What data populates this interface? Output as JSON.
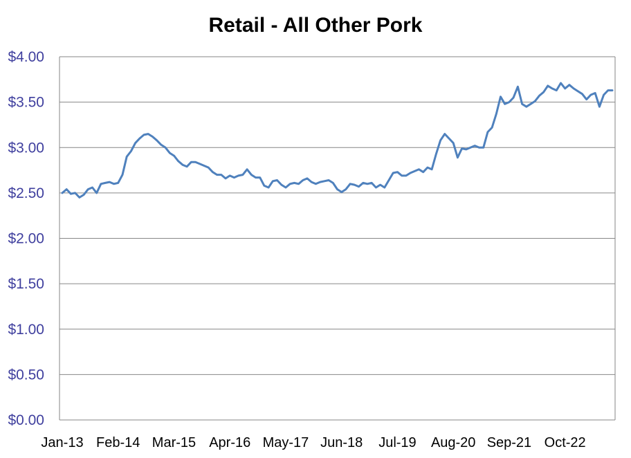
{
  "chart_data": {
    "type": "line",
    "title": "Retail - All Other Pork",
    "xlabel": "",
    "ylabel": "",
    "y_ticks": [
      "$0.00",
      "$0.50",
      "$1.00",
      "$1.50",
      "$2.00",
      "$2.50",
      "$3.00",
      "$3.50",
      "$4.00"
    ],
    "x_ticks": [
      "Jan-13",
      "Feb-14",
      "Mar-15",
      "Apr-16",
      "May-17",
      "Jun-18",
      "Jul-19",
      "Aug-20",
      "Sep-21",
      "Oct-22"
    ],
    "x_tick_start_month": 0,
    "x_tick_interval_months": 13,
    "ylim": [
      0,
      4
    ],
    "grid": true,
    "legend": "none",
    "colors": {
      "line": "#4F81BD",
      "grid": "#868686",
      "axis": "#868686",
      "ytick": "#3F3F9E"
    },
    "series": [
      {
        "values": [
          2.5,
          2.54,
          2.49,
          2.5,
          2.45,
          2.48,
          2.54,
          2.56,
          2.5,
          2.6,
          2.61,
          2.62,
          2.6,
          2.61,
          2.7,
          2.9,
          2.96,
          3.05,
          3.1,
          3.14,
          3.15,
          3.12,
          3.08,
          3.03,
          3.0,
          2.94,
          2.91,
          2.85,
          2.81,
          2.79,
          2.84,
          2.84,
          2.82,
          2.8,
          2.78,
          2.73,
          2.7,
          2.7,
          2.66,
          2.69,
          2.67,
          2.69,
          2.7,
          2.76,
          2.7,
          2.67,
          2.67,
          2.58,
          2.56,
          2.63,
          2.64,
          2.59,
          2.56,
          2.6,
          2.61,
          2.6,
          2.64,
          2.66,
          2.62,
          2.6,
          2.62,
          2.63,
          2.64,
          2.61,
          2.54,
          2.51,
          2.54,
          2.6,
          2.59,
          2.57,
          2.61,
          2.6,
          2.61,
          2.56,
          2.59,
          2.56,
          2.64,
          2.72,
          2.73,
          2.69,
          2.69,
          2.72,
          2.74,
          2.76,
          2.73,
          2.78,
          2.76,
          2.93,
          3.08,
          3.15,
          3.1,
          3.05,
          2.89,
          2.99,
          2.98,
          3.0,
          3.02,
          3.0,
          3.0,
          3.17,
          3.22,
          3.37,
          3.56,
          3.48,
          3.5,
          3.55,
          3.67,
          3.48,
          3.45,
          3.48,
          3.51,
          3.57,
          3.61,
          3.68,
          3.65,
          3.63,
          3.71,
          3.65,
          3.69,
          3.65,
          3.62,
          3.59,
          3.53,
          3.58,
          3.6,
          3.45,
          3.58,
          3.63,
          3.63
        ]
      }
    ]
  }
}
